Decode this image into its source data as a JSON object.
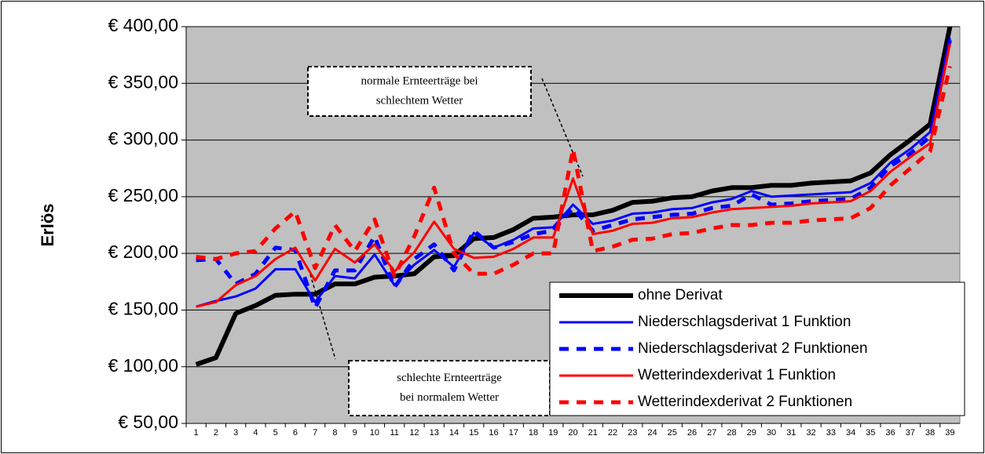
{
  "chart_data": {
    "type": "line",
    "ylabel": "Erlös",
    "categories": [
      "1",
      "2",
      "3",
      "4",
      "5",
      "6",
      "7",
      "8",
      "9",
      "10",
      "11",
      "12",
      "13",
      "14",
      "15",
      "16",
      "17",
      "18",
      "19",
      "20",
      "21",
      "22",
      "23",
      "24",
      "25",
      "26",
      "27",
      "28",
      "29",
      "30",
      "31",
      "32",
      "33",
      "34",
      "35",
      "36",
      "37",
      "38",
      "39"
    ],
    "series": [
      {
        "name": "ohne Derivat",
        "color": "#000000",
        "dashed": false,
        "values": [
          102,
          108,
          147,
          154,
          163,
          164,
          164,
          173,
          173,
          179,
          180,
          182,
          197,
          198,
          213,
          214,
          221,
          231,
          232,
          234,
          234,
          238,
          245,
          246,
          249,
          250,
          255,
          258,
          258,
          260,
          260,
          262,
          263,
          264,
          271,
          287,
          300,
          314,
          400
        ]
      },
      {
        "name": "Niederschlagsderivat 1 Funktion",
        "color": "#0000ff",
        "dashed": false,
        "values": [
          153,
          158,
          162,
          169,
          186,
          186,
          157,
          180,
          178,
          199,
          172,
          190,
          203,
          188,
          218,
          205,
          212,
          222,
          223,
          243,
          226,
          229,
          235,
          236,
          239,
          240,
          245,
          248,
          255,
          250,
          251,
          252,
          253,
          254,
          262,
          280,
          292,
          307,
          390
        ]
      },
      {
        "name": "Niederschlagsderivat 2 Funktionen",
        "color": "#0000ff",
        "dashed": true,
        "values": [
          194,
          195,
          173,
          182,
          205,
          203,
          152,
          185,
          185,
          215,
          170,
          195,
          208,
          185,
          220,
          205,
          210,
          217,
          220,
          240,
          220,
          225,
          230,
          232,
          234,
          235,
          240,
          242,
          252,
          243,
          244,
          246,
          247,
          248,
          258,
          277,
          288,
          303,
          388
        ]
      },
      {
        "name": "Wetterindexderivat 1 Funktion",
        "color": "#ff0000",
        "dashed": false,
        "values": [
          153,
          157,
          172,
          180,
          195,
          205,
          176,
          204,
          192,
          208,
          184,
          201,
          228,
          204,
          196,
          197,
          204,
          214,
          214,
          266,
          217,
          220,
          226,
          227,
          231,
          232,
          236,
          239,
          240,
          241,
          242,
          244,
          245,
          246,
          255,
          272,
          285,
          297,
          385
        ]
      },
      {
        "name": "Wetterindexderivat 2 Funktionen",
        "color": "#ff0000",
        "dashed": true,
        "values": [
          197,
          195,
          200,
          202,
          222,
          237,
          187,
          225,
          202,
          230,
          180,
          215,
          258,
          200,
          182,
          182,
          190,
          200,
          200,
          292,
          202,
          206,
          212,
          213,
          217,
          218,
          222,
          225,
          225,
          227,
          227,
          229,
          230,
          231,
          240,
          260,
          275,
          290,
          365
        ]
      }
    ],
    "ylim": [
      50,
      400
    ],
    "yticks": [
      {
        "value": 50,
        "label": "€ 50,00"
      },
      {
        "value": 100,
        "label": "€ 100,00"
      },
      {
        "value": 150,
        "label": "€ 150,00"
      },
      {
        "value": 200,
        "label": "€ 200,00"
      },
      {
        "value": 250,
        "label": "€ 250,00"
      },
      {
        "value": 300,
        "label": "€ 300,00"
      },
      {
        "value": 350,
        "label": "€ 350,00"
      },
      {
        "value": 400,
        "label": "€ 400,00"
      }
    ],
    "grid": true,
    "plot_background": "#c0c0c0",
    "legend": "lower right",
    "annotations": [
      {
        "lines": [
          "normale Ernteerträge bei",
          "schlechtem Wetter"
        ]
      },
      {
        "lines": [
          "schlechte Ernteerträge",
          "bei normalem Wetter"
        ]
      }
    ]
  }
}
